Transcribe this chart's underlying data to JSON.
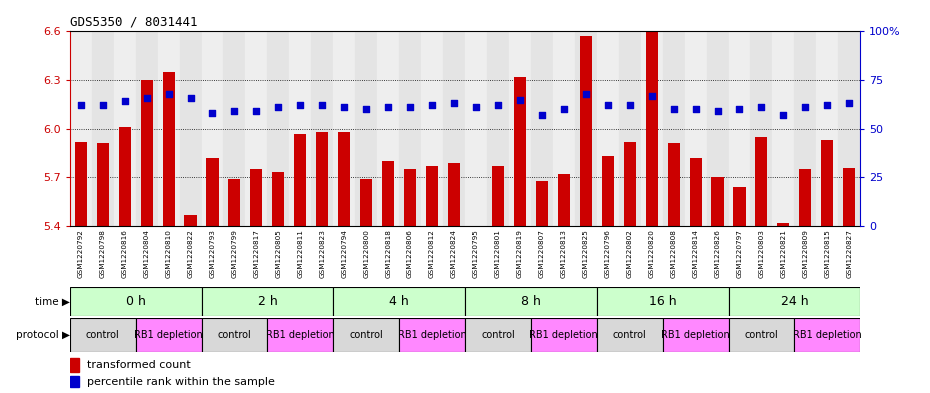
{
  "title": "GDS5350 / 8031441",
  "samples": [
    "GSM1220792",
    "GSM1220798",
    "GSM1220816",
    "GSM1220804",
    "GSM1220810",
    "GSM1220822",
    "GSM1220793",
    "GSM1220799",
    "GSM1220817",
    "GSM1220805",
    "GSM1220811",
    "GSM1220823",
    "GSM1220794",
    "GSM1220800",
    "GSM1220818",
    "GSM1220806",
    "GSM1220812",
    "GSM1220824",
    "GSM1220795",
    "GSM1220801",
    "GSM1220819",
    "GSM1220807",
    "GSM1220813",
    "GSM1220825",
    "GSM1220796",
    "GSM1220802",
    "GSM1220820",
    "GSM1220808",
    "GSM1220814",
    "GSM1220826",
    "GSM1220797",
    "GSM1220803",
    "GSM1220821",
    "GSM1220809",
    "GSM1220815",
    "GSM1220827"
  ],
  "bar_values": [
    5.92,
    5.91,
    6.01,
    6.3,
    6.35,
    5.47,
    5.82,
    5.69,
    5.75,
    5.73,
    5.97,
    5.98,
    5.98,
    5.69,
    5.8,
    5.75,
    5.77,
    5.79,
    5.37,
    5.77,
    6.32,
    5.68,
    5.72,
    6.57,
    5.83,
    5.92,
    6.6,
    5.91,
    5.82,
    5.7,
    5.64,
    5.95,
    5.42,
    5.75,
    5.93,
    5.76
  ],
  "percentile_values": [
    62,
    62,
    64,
    66,
    68,
    66,
    58,
    59,
    59,
    61,
    62,
    62,
    61,
    60,
    61,
    61,
    62,
    63,
    61,
    62,
    65,
    57,
    60,
    68,
    62,
    62,
    67,
    60,
    60,
    59,
    60,
    61,
    57,
    61,
    62,
    63
  ],
  "time_groups": [
    {
      "label": "0 h",
      "start": 0,
      "end": 6
    },
    {
      "label": "2 h",
      "start": 6,
      "end": 12
    },
    {
      "label": "4 h",
      "start": 12,
      "end": 18
    },
    {
      "label": "8 h",
      "start": 18,
      "end": 24
    },
    {
      "label": "16 h",
      "start": 24,
      "end": 30
    },
    {
      "label": "24 h",
      "start": 30,
      "end": 36
    }
  ],
  "protocol_groups": [
    {
      "label": "control",
      "start": 0,
      "end": 3,
      "color": "#d8d8d8"
    },
    {
      "label": "RB1 depletion",
      "start": 3,
      "end": 6,
      "color": "#ff88ff"
    },
    {
      "label": "control",
      "start": 6,
      "end": 9,
      "color": "#d8d8d8"
    },
    {
      "label": "RB1 depletion",
      "start": 9,
      "end": 12,
      "color": "#ff88ff"
    },
    {
      "label": "control",
      "start": 12,
      "end": 15,
      "color": "#d8d8d8"
    },
    {
      "label": "RB1 depletion",
      "start": 15,
      "end": 18,
      "color": "#ff88ff"
    },
    {
      "label": "control",
      "start": 18,
      "end": 21,
      "color": "#d8d8d8"
    },
    {
      "label": "RB1 depletion",
      "start": 21,
      "end": 24,
      "color": "#ff88ff"
    },
    {
      "label": "control",
      "start": 24,
      "end": 27,
      "color": "#d8d8d8"
    },
    {
      "label": "RB1 depletion",
      "start": 27,
      "end": 30,
      "color": "#ff88ff"
    },
    {
      "label": "control",
      "start": 30,
      "end": 33,
      "color": "#d8d8d8"
    },
    {
      "label": "RB1 depletion",
      "start": 33,
      "end": 36,
      "color": "#ff88ff"
    }
  ],
  "ylim": [
    5.4,
    6.6
  ],
  "yticks": [
    5.4,
    5.7,
    6.0,
    6.3,
    6.6
  ],
  "y2ticks": [
    0,
    25,
    50,
    75,
    100
  ],
  "bar_color": "#cc0000",
  "dot_color": "#0000cc",
  "background_color": "#ffffff",
  "time_bg_color": "#aaddaa",
  "time_bright_color": "#ccffcc",
  "legend_bar_label": "transformed count",
  "legend_dot_label": "percentile rank within the sample"
}
